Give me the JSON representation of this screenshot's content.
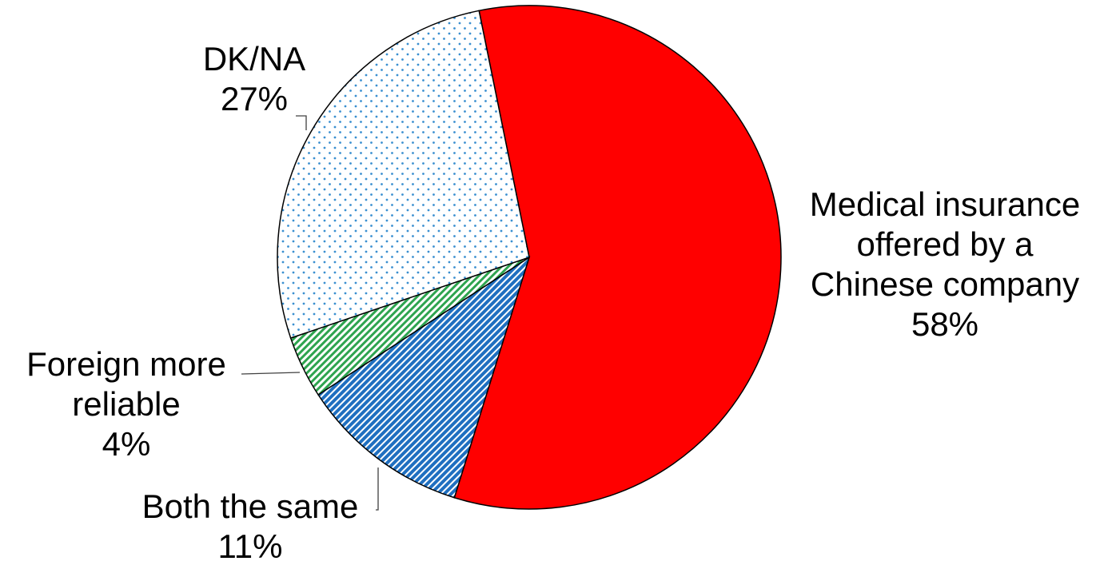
{
  "chart_data": {
    "type": "pie",
    "title": "",
    "slices": [
      {
        "label_lines": [
          "Medical insurance",
          "offered by a",
          "Chinese company",
          "58%"
        ],
        "value": 58,
        "color": "#FF0000",
        "pattern": "solid"
      },
      {
        "label_lines": [
          "Both the same",
          "11%"
        ],
        "value": 11,
        "color": "#1F6FC0",
        "pattern": "diagonal-hatch"
      },
      {
        "label_lines": [
          "Foreign more",
          "reliable",
          "4%"
        ],
        "value": 4,
        "color": "#2EA44F",
        "pattern": "diagonal-hatch"
      },
      {
        "label_lines": [
          "DK/NA",
          "27%"
        ],
        "value": 27,
        "color": "#3A8FD0",
        "pattern": "dots"
      }
    ]
  }
}
